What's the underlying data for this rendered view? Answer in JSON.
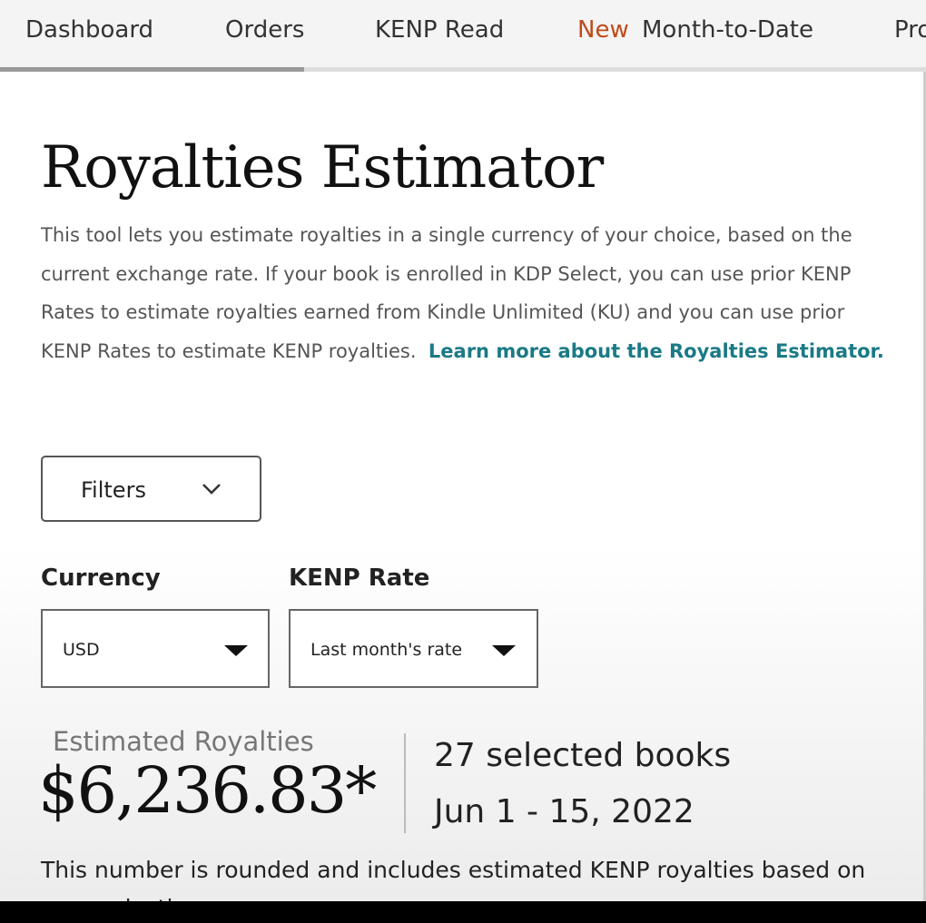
{
  "nav": {
    "tabs": [
      {
        "label": "Dashboard"
      },
      {
        "label": "Orders"
      },
      {
        "label": "KENP Read"
      },
      {
        "badge": "New",
        "label": "Month-to-Date"
      },
      {
        "label": "Pro"
      }
    ]
  },
  "main": {
    "title": "Royalties Estimator",
    "description": "This tool lets you estimate royalties in a single currency of your choice, based on the current exchange rate. If your book is enrolled in KDP Select, you can use prior KENP Rates to estimate royalties earned from Kindle Unlimited (KU) and you can use prior KENP Rates to estimate KENP royalties.",
    "learn_more": "Learn more about the Royalties Estimator.",
    "filters_label": "Filters",
    "currency_label": "Currency",
    "currency_value": "USD",
    "kenp_label": "KENP Rate",
    "kenp_value": "Last month's rate",
    "estimated_label": "Estimated Royalties",
    "estimated_amount": "$6,236.83*",
    "selected_books": "27 selected books",
    "date_range": "Jun 1 - 15, 2022",
    "footnote": "This number is rounded and includes estimated KENP royalties based on your selections."
  },
  "colors": {
    "link": "#1a7a86",
    "new_badge": "#c04a1a"
  }
}
